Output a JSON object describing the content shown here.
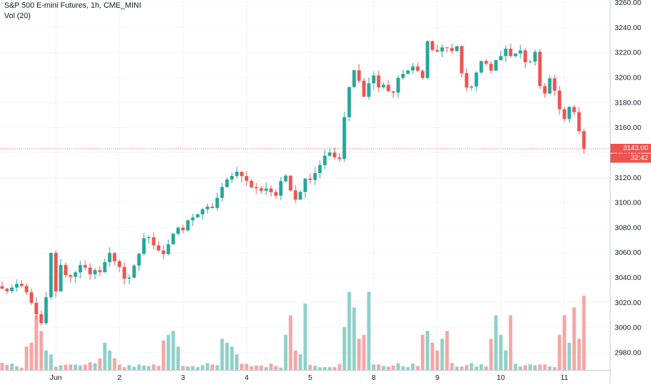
{
  "legend": {
    "title": "S&P 500 E-mini Futures, 1h, CME_MINI",
    "volume": "Vol (20)"
  },
  "price_tag": {
    "price": "3143.00",
    "countdown": "32:42"
  },
  "colors": {
    "up": "#26a69a",
    "down": "#ef5350",
    "up_volume": "#8fd0c9",
    "down_volume": "#f5a6a5",
    "grid": "#f0f3fa",
    "axis_text": "#131722"
  },
  "chart_data": {
    "type": "candlestick",
    "title": "S&P 500 E-mini Futures, 1h, CME_MINI",
    "y_axis": {
      "position": "right",
      "ticks": [
        2980,
        3000,
        3020,
        3040,
        3060,
        3080,
        3100,
        3120,
        3140,
        3160,
        3180,
        3200,
        3220,
        3240,
        3260
      ],
      "tick_labels": [
        "2980.00",
        "3000.00",
        "3020.00",
        "3040.00",
        "3060.00",
        "3080.00",
        "3100.00",
        "3120.00",
        "3140.00",
        "3160.00",
        "3180.00",
        "3200.00",
        "3220.00",
        "3240.00",
        "3260.00"
      ],
      "ylim": [
        2966,
        3262
      ]
    },
    "x_axis": {
      "tick_labels": [
        "Jun",
        "2",
        "3",
        "4",
        "5",
        "8",
        "9",
        "10",
        "11"
      ],
      "tick_bar_index": [
        11,
        24,
        37,
        50,
        63,
        76,
        89,
        102,
        115
      ],
      "bars_total": 120
    },
    "grid": true,
    "last_price": 3143.0,
    "price_path": [
      [
        0,
        3030
      ],
      [
        4,
        3032
      ],
      [
        6,
        3022
      ],
      [
        7,
        3008
      ],
      [
        8,
        3002
      ],
      [
        9,
        3022
      ],
      [
        10,
        3058
      ],
      [
        11,
        3030
      ],
      [
        12,
        3048
      ],
      [
        14,
        3040
      ],
      [
        16,
        3052
      ],
      [
        18,
        3040
      ],
      [
        20,
        3047
      ],
      [
        22,
        3058
      ],
      [
        24,
        3050
      ],
      [
        25,
        3040
      ],
      [
        26,
        3037
      ],
      [
        27,
        3047
      ],
      [
        29,
        3072
      ],
      [
        31,
        3068
      ],
      [
        33,
        3060
      ],
      [
        35,
        3075
      ],
      [
        37,
        3078
      ],
      [
        39,
        3090
      ],
      [
        41,
        3092
      ],
      [
        43,
        3097
      ],
      [
        45,
        3110
      ],
      [
        47,
        3124
      ],
      [
        49,
        3124
      ],
      [
        50,
        3116
      ],
      [
        52,
        3110
      ],
      [
        54,
        3112
      ],
      [
        56,
        3106
      ],
      [
        58,
        3122
      ],
      [
        60,
        3104
      ],
      [
        62,
        3118
      ],
      [
        64,
        3125
      ],
      [
        66,
        3138
      ],
      [
        67,
        3142
      ],
      [
        68,
        3134
      ],
      [
        69,
        3135
      ],
      [
        70,
        3168
      ],
      [
        71,
        3190
      ],
      [
        72,
        3205
      ],
      [
        73,
        3196
      ],
      [
        74,
        3188
      ],
      [
        76,
        3202
      ],
      [
        77,
        3192
      ],
      [
        78,
        3193
      ],
      [
        80,
        3188
      ],
      [
        82,
        3205
      ],
      [
        84,
        3206
      ],
      [
        86,
        3203
      ],
      [
        87,
        3228
      ],
      [
        88,
        3221
      ],
      [
        90,
        3222
      ],
      [
        93,
        3223
      ],
      [
        94,
        3200
      ],
      [
        95,
        3192
      ],
      [
        96,
        3195
      ],
      [
        98,
        3212
      ],
      [
        100,
        3205
      ],
      [
        102,
        3220
      ],
      [
        104,
        3220
      ],
      [
        106,
        3222
      ],
      [
        107,
        3210
      ],
      [
        109,
        3218
      ],
      [
        110,
        3195
      ],
      [
        111,
        3185
      ],
      [
        112,
        3200
      ],
      [
        113,
        3190
      ],
      [
        114,
        3178
      ],
      [
        115,
        3168
      ],
      [
        116,
        3175
      ],
      [
        117,
        3170
      ],
      [
        118,
        3155
      ],
      [
        119,
        3143
      ]
    ],
    "volume_spikes": [
      [
        5,
        0.3
      ],
      [
        6,
        0.35
      ],
      [
        7,
        0.7
      ],
      [
        8,
        0.5
      ],
      [
        9,
        0.25
      ],
      [
        10,
        0.2
      ],
      [
        18,
        0.1
      ],
      [
        20,
        0.15
      ],
      [
        21,
        0.35
      ],
      [
        22,
        0.25
      ],
      [
        23,
        0.15
      ],
      [
        33,
        0.38
      ],
      [
        34,
        0.45
      ],
      [
        35,
        0.5
      ],
      [
        36,
        0.3
      ],
      [
        45,
        0.4
      ],
      [
        46,
        0.35
      ],
      [
        47,
        0.3
      ],
      [
        48,
        0.2
      ],
      [
        58,
        0.45
      ],
      [
        59,
        0.7
      ],
      [
        60,
        0.25
      ],
      [
        61,
        0.2
      ],
      [
        62,
        0.85
      ],
      [
        70,
        0.55
      ],
      [
        71,
        1.0
      ],
      [
        72,
        0.8
      ],
      [
        73,
        0.4
      ],
      [
        74,
        0.45
      ],
      [
        75,
        1.0
      ],
      [
        86,
        0.45
      ],
      [
        87,
        0.5
      ],
      [
        88,
        0.35
      ],
      [
        89,
        0.25
      ],
      [
        90,
        0.4
      ],
      [
        91,
        0.5
      ],
      [
        100,
        0.4
      ],
      [
        101,
        0.7
      ],
      [
        102,
        0.45
      ],
      [
        103,
        0.25
      ],
      [
        104,
        0.7
      ],
      [
        114,
        0.45
      ],
      [
        115,
        0.7
      ],
      [
        116,
        0.35
      ],
      [
        117,
        0.8
      ],
      [
        118,
        0.4
      ],
      [
        119,
        0.95
      ],
      [
        120,
        0.85
      ]
    ]
  }
}
